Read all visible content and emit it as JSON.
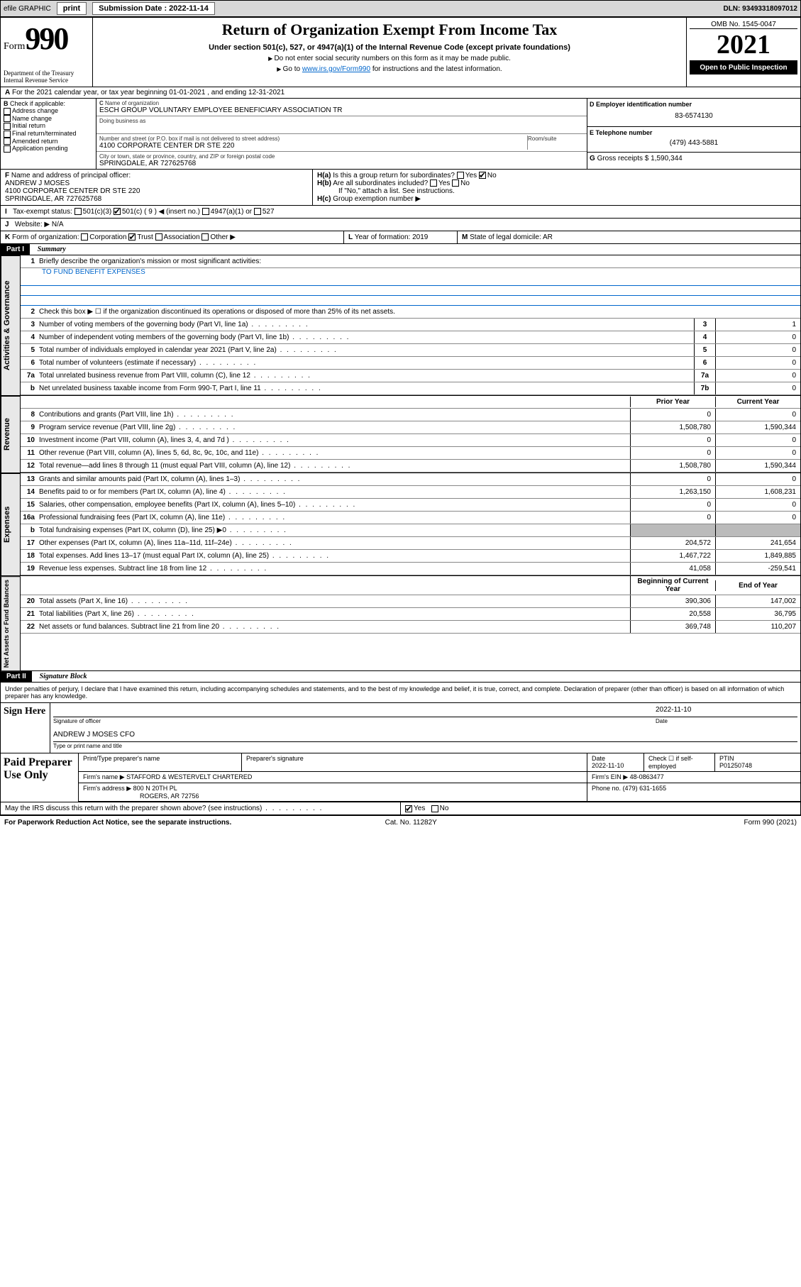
{
  "topbar": {
    "efile": "efile GRAPHIC",
    "print": "print",
    "sub_label": "Submission Date : 2022-11-14",
    "dln": "DLN: 93493318097012"
  },
  "header": {
    "form_word": "Form",
    "form_num": "990",
    "dept": "Department of the Treasury\nInternal Revenue Service",
    "title": "Return of Organization Exempt From Income Tax",
    "subtitle": "Under section 501(c), 527, or 4947(a)(1) of the Internal Revenue Code (except private foundations)",
    "instr1": "Do not enter social security numbers on this form as it may be made public.",
    "instr2_pre": "Go to ",
    "instr2_link": "www.irs.gov/Form990",
    "instr2_post": " for instructions and the latest information.",
    "omb": "OMB No. 1545-0047",
    "year": "2021",
    "open": "Open to Public Inspection"
  },
  "rowA": "For the 2021 calendar year, or tax year beginning 01-01-2021    , and ending 12-31-2021",
  "B": {
    "label": "Check if applicable:",
    "items": [
      "Address change",
      "Name change",
      "Initial return",
      "Final return/terminated",
      "Amended return",
      "Application pending"
    ]
  },
  "C": {
    "name_lbl": "Name of organization",
    "name": "ESCH GROUP VOLUNTARY EMPLOYEE BENEFICIARY ASSOCIATION TR",
    "dba_lbl": "Doing business as",
    "addr_lbl": "Number and street (or P.O. box if mail is not delivered to street address)",
    "room_lbl": "Room/suite",
    "addr": "4100 CORPORATE CENTER DR STE 220",
    "city_lbl": "City or town, state or province, country, and ZIP or foreign postal code",
    "city": "SPRINGDALE, AR  727625768"
  },
  "D": {
    "lbl": "Employer identification number",
    "val": "83-6574130"
  },
  "E": {
    "lbl": "Telephone number",
    "val": "(479) 443-5881"
  },
  "G": {
    "lbl": "Gross receipts $",
    "val": "1,590,344"
  },
  "F": {
    "lbl": "Name and address of principal officer:",
    "name": "ANDREW J MOSES",
    "addr": "4100 CORPORATE CENTER DR STE 220",
    "city": "SPRINGDALE, AR  727625768"
  },
  "H": {
    "a": "Is this a group return for subordinates?",
    "a_ans": "No",
    "b": "Are all subordinates included?",
    "b_note": "If \"No,\" attach a list. See instructions.",
    "c": "Group exemption number ▶"
  },
  "I": {
    "lbl": "Tax-exempt status:",
    "opts": [
      "501(c)(3)",
      "501(c) ( 9 ) ◀ (insert no.)",
      "4947(a)(1) or",
      "527"
    ]
  },
  "J": {
    "lbl": "Website: ▶",
    "val": "N/A"
  },
  "K": {
    "lbl": "Form of organization:",
    "opts": [
      "Corporation",
      "Trust",
      "Association",
      "Other ▶"
    ],
    "checked": 1
  },
  "L": {
    "lbl": "Year of formation:",
    "val": "2019"
  },
  "M": {
    "lbl": "State of legal domicile:",
    "val": "AR"
  },
  "part1": {
    "hdr": "Part I",
    "title": "Summary",
    "line1": "Briefly describe the organization's mission or most significant activities:",
    "mission": "TO FUND BENEFIT EXPENSES",
    "line2": "Check this box ▶ ☐  if the organization discontinued its operations or disposed of more than 25% of its net assets."
  },
  "sections": {
    "gov": "Activities & Governance",
    "rev": "Revenue",
    "exp": "Expenses",
    "net": "Net Assets or Fund Balances"
  },
  "gov_lines": [
    {
      "n": "3",
      "d": "Number of voting members of the governing body (Part VI, line 1a)",
      "box": "3",
      "v": "1"
    },
    {
      "n": "4",
      "d": "Number of independent voting members of the governing body (Part VI, line 1b)",
      "box": "4",
      "v": "0"
    },
    {
      "n": "5",
      "d": "Total number of individuals employed in calendar year 2021 (Part V, line 2a)",
      "box": "5",
      "v": "0"
    },
    {
      "n": "6",
      "d": "Total number of volunteers (estimate if necessary)",
      "box": "6",
      "v": "0"
    },
    {
      "n": "7a",
      "d": "Total unrelated business revenue from Part VIII, column (C), line 12",
      "box": "7a",
      "v": "0"
    },
    {
      "n": "b",
      "d": "Net unrelated business taxable income from Form 990-T, Part I, line 11",
      "box": "7b",
      "v": "0"
    }
  ],
  "col_hdrs": {
    "py": "Prior Year",
    "cy": "Current Year",
    "boy": "Beginning of Current Year",
    "eoy": "End of Year"
  },
  "rev_lines": [
    {
      "n": "8",
      "d": "Contributions and grants (Part VIII, line 1h)",
      "py": "0",
      "cy": "0"
    },
    {
      "n": "9",
      "d": "Program service revenue (Part VIII, line 2g)",
      "py": "1,508,780",
      "cy": "1,590,344"
    },
    {
      "n": "10",
      "d": "Investment income (Part VIII, column (A), lines 3, 4, and 7d )",
      "py": "0",
      "cy": "0"
    },
    {
      "n": "11",
      "d": "Other revenue (Part VIII, column (A), lines 5, 6d, 8c, 9c, 10c, and 11e)",
      "py": "0",
      "cy": "0"
    },
    {
      "n": "12",
      "d": "Total revenue—add lines 8 through 11 (must equal Part VIII, column (A), line 12)",
      "py": "1,508,780",
      "cy": "1,590,344"
    }
  ],
  "exp_lines": [
    {
      "n": "13",
      "d": "Grants and similar amounts paid (Part IX, column (A), lines 1–3)",
      "py": "0",
      "cy": "0"
    },
    {
      "n": "14",
      "d": "Benefits paid to or for members (Part IX, column (A), line 4)",
      "py": "1,263,150",
      "cy": "1,608,231"
    },
    {
      "n": "15",
      "d": "Salaries, other compensation, employee benefits (Part IX, column (A), lines 5–10)",
      "py": "0",
      "cy": "0"
    },
    {
      "n": "16a",
      "d": "Professional fundraising fees (Part IX, column (A), line 11e)",
      "py": "0",
      "cy": "0"
    },
    {
      "n": "b",
      "d": "Total fundraising expenses (Part IX, column (D), line 25) ▶0",
      "py": "",
      "cy": "",
      "shade": true
    },
    {
      "n": "17",
      "d": "Other expenses (Part IX, column (A), lines 11a–11d, 11f–24e)",
      "py": "204,572",
      "cy": "241,654"
    },
    {
      "n": "18",
      "d": "Total expenses. Add lines 13–17 (must equal Part IX, column (A), line 25)",
      "py": "1,467,722",
      "cy": "1,849,885"
    },
    {
      "n": "19",
      "d": "Revenue less expenses. Subtract line 18 from line 12",
      "py": "41,058",
      "cy": "-259,541"
    }
  ],
  "net_lines": [
    {
      "n": "20",
      "d": "Total assets (Part X, line 16)",
      "py": "390,306",
      "cy": "147,002"
    },
    {
      "n": "21",
      "d": "Total liabilities (Part X, line 26)",
      "py": "20,558",
      "cy": "36,795"
    },
    {
      "n": "22",
      "d": "Net assets or fund balances. Subtract line 21 from line 20",
      "py": "369,748",
      "cy": "110,207"
    }
  ],
  "part2": {
    "hdr": "Part II",
    "title": "Signature Block",
    "decl": "Under penalties of perjury, I declare that I have examined this return, including accompanying schedules and statements, and to the best of my knowledge and belief, it is true, correct, and complete. Declaration of preparer (other than officer) is based on all information of which preparer has any knowledge."
  },
  "sign": {
    "lbl": "Sign Here",
    "officer": "Signature of officer",
    "date": "Date",
    "date_val": "2022-11-10",
    "name": "ANDREW J MOSES CFO",
    "name_lbl": "Type or print name and title"
  },
  "paid": {
    "lbl": "Paid Preparer Use Only",
    "hdrs": [
      "Print/Type preparer's name",
      "Preparer's signature",
      "Date",
      "Check ☐ if self-employed",
      "PTIN"
    ],
    "date": "2022-11-10",
    "ptin": "P01250748",
    "firm_lbl": "Firm's name ▶",
    "firm": "STAFFORD & WESTERVELT CHARTERED",
    "ein_lbl": "Firm's EIN ▶",
    "ein": "48-0863477",
    "addr_lbl": "Firm's address ▶",
    "addr": "800 N 20TH PL",
    "city": "ROGERS, AR  72756",
    "phone_lbl": "Phone no.",
    "phone": "(479) 631-1655"
  },
  "discuss": "May the IRS discuss this return with the preparer shown above? (see instructions)",
  "discuss_ans": "Yes",
  "footer": {
    "pra": "For Paperwork Reduction Act Notice, see the separate instructions.",
    "cat": "Cat. No. 11282Y",
    "form": "Form 990 (2021)"
  }
}
